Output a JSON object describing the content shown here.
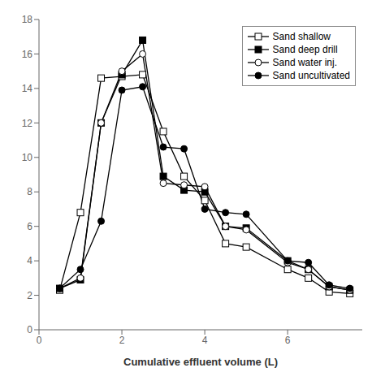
{
  "chart_data": {
    "type": "line",
    "xlabel": "Cumulative effluent volume (L)",
    "x": [
      0.5,
      1.0,
      1.5,
      2.0,
      2.5,
      3.0,
      3.5,
      4.0,
      4.5,
      5.0,
      6.0,
      6.5,
      7.0,
      7.5
    ],
    "series": [
      {
        "name": "Sand shallow",
        "color": "#000000",
        "marker": "square_open",
        "values": [
          2.3,
          6.8,
          14.6,
          14.7,
          14.8,
          11.5,
          8.9,
          7.5,
          5.0,
          4.8,
          3.5,
          3.0,
          2.2,
          2.1
        ]
      },
      {
        "name": "Sand deep drill",
        "color": "#000000",
        "marker": "square",
        "values": [
          2.4,
          2.9,
          12.0,
          14.8,
          16.8,
          8.9,
          8.1,
          8.0,
          6.0,
          5.9,
          4.0,
          3.5,
          2.5,
          2.3
        ]
      },
      {
        "name": "Sand water inj.",
        "color": "#000000",
        "marker": "circle_open",
        "values": [
          2.4,
          3.0,
          12.0,
          15.0,
          16.0,
          8.5,
          8.4,
          8.3,
          6.0,
          5.8,
          3.9,
          3.5,
          2.5,
          2.3
        ]
      },
      {
        "name": "Sand uncultivated",
        "color": "#000000",
        "marker": "circle",
        "values": [
          2.4,
          3.5,
          6.3,
          13.9,
          14.1,
          10.6,
          10.5,
          7.0,
          6.8,
          6.7,
          4.0,
          3.9,
          2.6,
          2.4
        ]
      }
    ],
    "xlim": [
      0,
      7.8
    ],
    "ylim": [
      0,
      18
    ],
    "xticks": [
      0,
      2,
      4,
      6
    ],
    "yticks": [
      0,
      2,
      4,
      6,
      8,
      10,
      12,
      14,
      16,
      18
    ],
    "grid": false,
    "legend": "upper right"
  }
}
